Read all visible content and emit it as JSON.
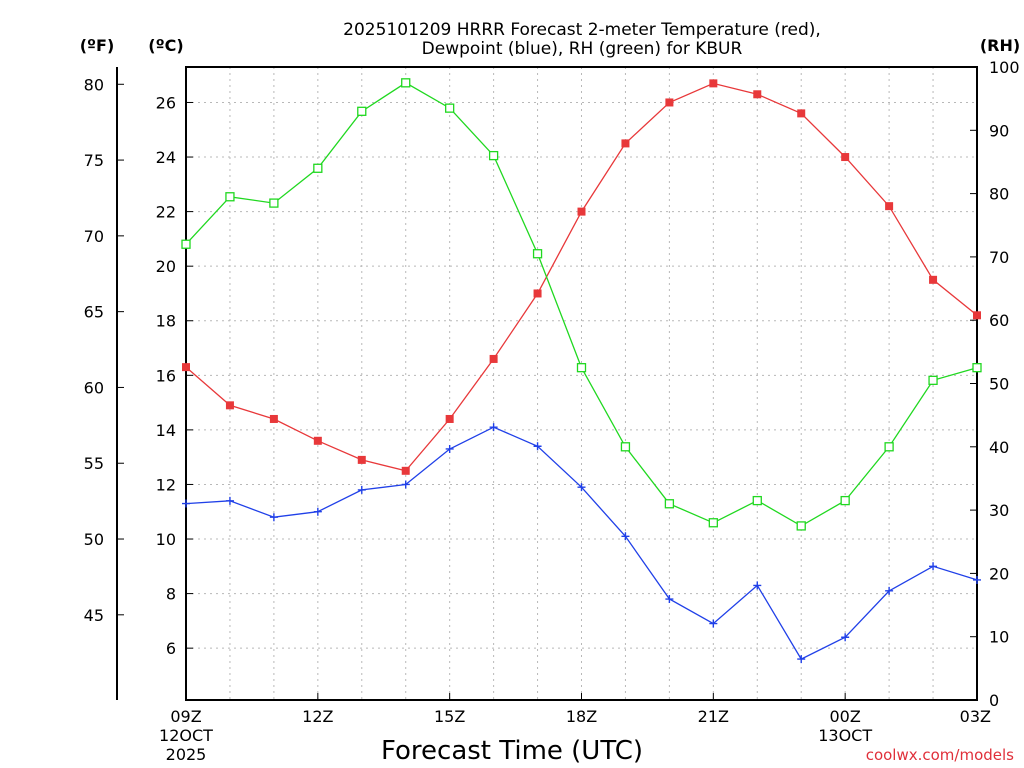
{
  "chart_data": {
    "type": "line",
    "title": "2025101209 HRRR Forecast 2-meter Temperature (red),",
    "subtitle": "Dewpoint (blue), RH (green) for KBUR",
    "xlabel": "Forecast Time (UTC)",
    "credit": "coolwx.com/models",
    "units": {
      "fahrenheit": "(ºF)",
      "celsius": "(ºC)",
      "rh": "(RH)"
    },
    "x_hours": [
      0,
      1,
      2,
      3,
      4,
      5,
      6,
      7,
      8,
      9,
      10,
      11,
      12,
      13,
      14,
      15,
      16,
      17,
      18
    ],
    "xlim": [
      0,
      18
    ],
    "x_ticks": [
      {
        "hour": 0,
        "label": "09Z",
        "sub1": "12OCT",
        "sub2": "2025"
      },
      {
        "hour": 3,
        "label": "12Z",
        "sub1": "",
        "sub2": ""
      },
      {
        "hour": 6,
        "label": "15Z",
        "sub1": "",
        "sub2": ""
      },
      {
        "hour": 9,
        "label": "18Z",
        "sub1": "",
        "sub2": ""
      },
      {
        "hour": 12,
        "label": "21Z",
        "sub1": "",
        "sub2": ""
      },
      {
        "hour": 15,
        "label": "00Z",
        "sub1": "13OCT",
        "sub2": ""
      },
      {
        "hour": 18,
        "label": "03Z",
        "sub1": "",
        "sub2": ""
      }
    ],
    "y_celsius": {
      "lim": [
        4.1,
        27.3
      ],
      "ticks": [
        6,
        8,
        10,
        12,
        14,
        16,
        18,
        20,
        22,
        24,
        26
      ]
    },
    "y_fahrenheit": {
      "ticks": [
        45,
        50,
        55,
        60,
        65,
        70,
        75,
        80
      ]
    },
    "y_rh": {
      "lim": [
        0,
        100
      ],
      "ticks": [
        0,
        10,
        20,
        30,
        40,
        50,
        60,
        70,
        80,
        90,
        100
      ]
    },
    "series": [
      {
        "name": "Temperature",
        "axis": "celsius",
        "color": "#e8383a",
        "marker": "filled-square",
        "values": [
          16.3,
          14.9,
          14.4,
          13.6,
          12.9,
          12.5,
          14.4,
          16.6,
          19.0,
          22.0,
          24.5,
          26.0,
          26.7,
          26.3,
          25.6,
          24.0,
          22.2,
          19.5,
          18.2
        ]
      },
      {
        "name": "Dewpoint",
        "axis": "celsius",
        "color": "#2040e8",
        "marker": "plus",
        "values": [
          11.3,
          11.4,
          10.8,
          11.0,
          11.8,
          12.0,
          13.3,
          14.1,
          13.4,
          11.9,
          10.1,
          7.8,
          6.9,
          8.3,
          5.6,
          6.4,
          8.1,
          9.0,
          8.5
        ]
      },
      {
        "name": "RH",
        "axis": "rh",
        "color": "#20d820",
        "marker": "open-square",
        "values": [
          72,
          79.5,
          78.5,
          84,
          93,
          97.5,
          93.5,
          86,
          70.5,
          52.5,
          40,
          31,
          28,
          31.5,
          27.5,
          31.5,
          40,
          50.5,
          52.5
        ]
      }
    ]
  }
}
